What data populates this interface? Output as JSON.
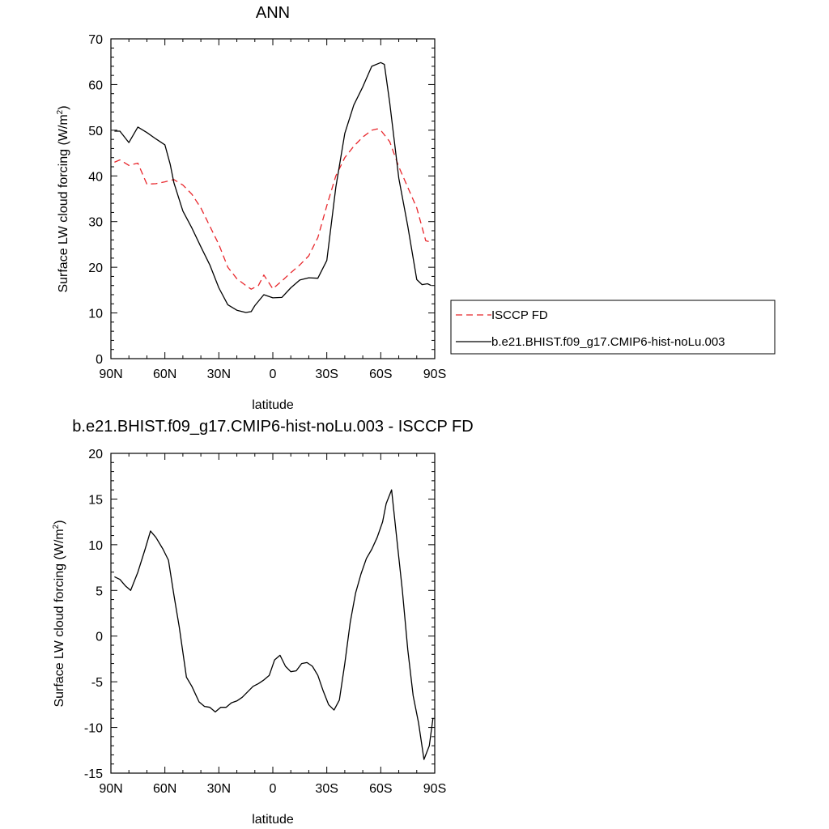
{
  "chart_data": [
    {
      "type": "line",
      "title": "ANN",
      "xlabel": "latitude",
      "ylabel": "Surface LW cloud forcing (W/m",
      "ylabel_sup": "2",
      "ylabel_end": ")",
      "xlim": [
        -90,
        90
      ],
      "ylim": [
        0,
        70
      ],
      "xticks": [
        -90,
        -60,
        -30,
        0,
        30,
        60,
        90
      ],
      "xtick_labels": [
        "90N",
        "60N",
        "30N",
        "0",
        "30S",
        "60S",
        "90S"
      ],
      "yticks": [
        0,
        10,
        20,
        30,
        40,
        50,
        60,
        70
      ],
      "ytick_labels": [
        "0",
        "10",
        "20",
        "30",
        "40",
        "50",
        "60",
        "70"
      ],
      "grid": false,
      "legend_position": "right",
      "series": [
        {
          "name": "ISCCP FD",
          "color": "#e8262b",
          "dash": "dashed",
          "x": [
            -88,
            -85,
            -80,
            -75,
            -70,
            -65,
            -60,
            -55,
            -50,
            -45,
            -40,
            -35,
            -30,
            -25,
            -20,
            -15,
            -12,
            -8,
            -5,
            0,
            5,
            10,
            15,
            20,
            25,
            30,
            35,
            40,
            45,
            50,
            55,
            58,
            60,
            65,
            70,
            75,
            80,
            85,
            88
          ],
          "values": [
            43,
            43.5,
            42.3,
            42.8,
            38.2,
            38.3,
            38.7,
            39.2,
            38,
            36,
            33,
            29,
            25,
            20,
            17.5,
            16,
            15.2,
            16,
            18.3,
            15.3,
            17,
            18.8,
            20.5,
            22.5,
            26.5,
            33.5,
            40,
            44,
            46.5,
            48.5,
            50,
            50.3,
            50,
            47.5,
            42,
            37.5,
            33,
            25.8,
            25.5
          ]
        },
        {
          "name": "b.e21.BHIST.f09_g17.CMIP6-hist-noLu.003",
          "color": "#000000",
          "dash": "solid",
          "x": [
            -88,
            -85,
            -80,
            -75,
            -70,
            -65,
            -60,
            -57,
            -55,
            -50,
            -45,
            -40,
            -35,
            -30,
            -25,
            -20,
            -15,
            -12,
            -10,
            -5,
            0,
            5,
            10,
            15,
            20,
            25,
            30,
            35,
            40,
            45,
            50,
            55,
            60,
            62,
            65,
            70,
            75,
            80,
            83,
            86,
            88
          ],
          "values": [
            49.8,
            49.8,
            47.3,
            50.7,
            49.5,
            48.1,
            46.8,
            42.5,
            38.5,
            32.3,
            28.6,
            24.5,
            20.5,
            15.5,
            11.8,
            10.6,
            10.1,
            10.3,
            11.6,
            14,
            13.3,
            13.4,
            15.5,
            17.2,
            17.7,
            17.6,
            21.5,
            37.5,
            49.3,
            55.5,
            59.5,
            64,
            64.8,
            64.4,
            56,
            39.5,
            29,
            17.3,
            16.2,
            16.4,
            16
          ]
        }
      ]
    },
    {
      "type": "line",
      "title": "b.e21.BHIST.f09_g17.CMIP6-hist-noLu.003 - ISCCP FD",
      "xlabel": "latitude",
      "ylabel": "Surface LW cloud forcing (W/m",
      "ylabel_sup": "2",
      "ylabel_end": ")",
      "xlim": [
        -90,
        90
      ],
      "ylim": [
        -15,
        20
      ],
      "xticks": [
        -90,
        -60,
        -30,
        0,
        30,
        60,
        90
      ],
      "xtick_labels": [
        "90N",
        "60N",
        "30N",
        "0",
        "30S",
        "60S",
        "90S"
      ],
      "yticks": [
        -15,
        -10,
        -5,
        0,
        5,
        10,
        15,
        20
      ],
      "ytick_labels": [
        "-15",
        "-10",
        "-5",
        "0",
        "5",
        "10",
        "15",
        "20"
      ],
      "grid": false,
      "series": [
        {
          "color": "#000000",
          "dash": "solid",
          "x": [
            -88,
            -85,
            -82,
            -79,
            -75,
            -71,
            -68,
            -65,
            -61,
            -58,
            -55,
            -52,
            -48,
            -45,
            -41,
            -38,
            -35,
            -32,
            -29,
            -26,
            -23,
            -20,
            -17,
            -14,
            -11,
            -8,
            -5,
            -2,
            1,
            4,
            7,
            10,
            13,
            16,
            19,
            22,
            25,
            28,
            31,
            34,
            37,
            40,
            43,
            46,
            49,
            52,
            55,
            58,
            61,
            63,
            66,
            69,
            72,
            75,
            78,
            81,
            84,
            87,
            89
          ],
          "values": [
            6.5,
            6.2,
            5.5,
            5,
            7,
            9.5,
            11.5,
            10.8,
            9.5,
            8.3,
            4.5,
            1,
            -4.5,
            -5.5,
            -7.2,
            -7.7,
            -7.8,
            -8.3,
            -7.8,
            -7.8,
            -7.3,
            -7.1,
            -6.7,
            -6.1,
            -5.5,
            -5.2,
            -4.8,
            -4.3,
            -2.6,
            -2.1,
            -3.3,
            -3.9,
            -3.8,
            -3,
            -2.9,
            -3.3,
            -4.3,
            -6,
            -7.5,
            -8.1,
            -7,
            -3,
            1.5,
            4.7,
            6.8,
            8.5,
            9.5,
            10.8,
            12.5,
            14.5,
            16,
            10.5,
            5,
            -1.5,
            -6.5,
            -9.5,
            -13.5,
            -12,
            -9
          ]
        }
      ]
    }
  ]
}
